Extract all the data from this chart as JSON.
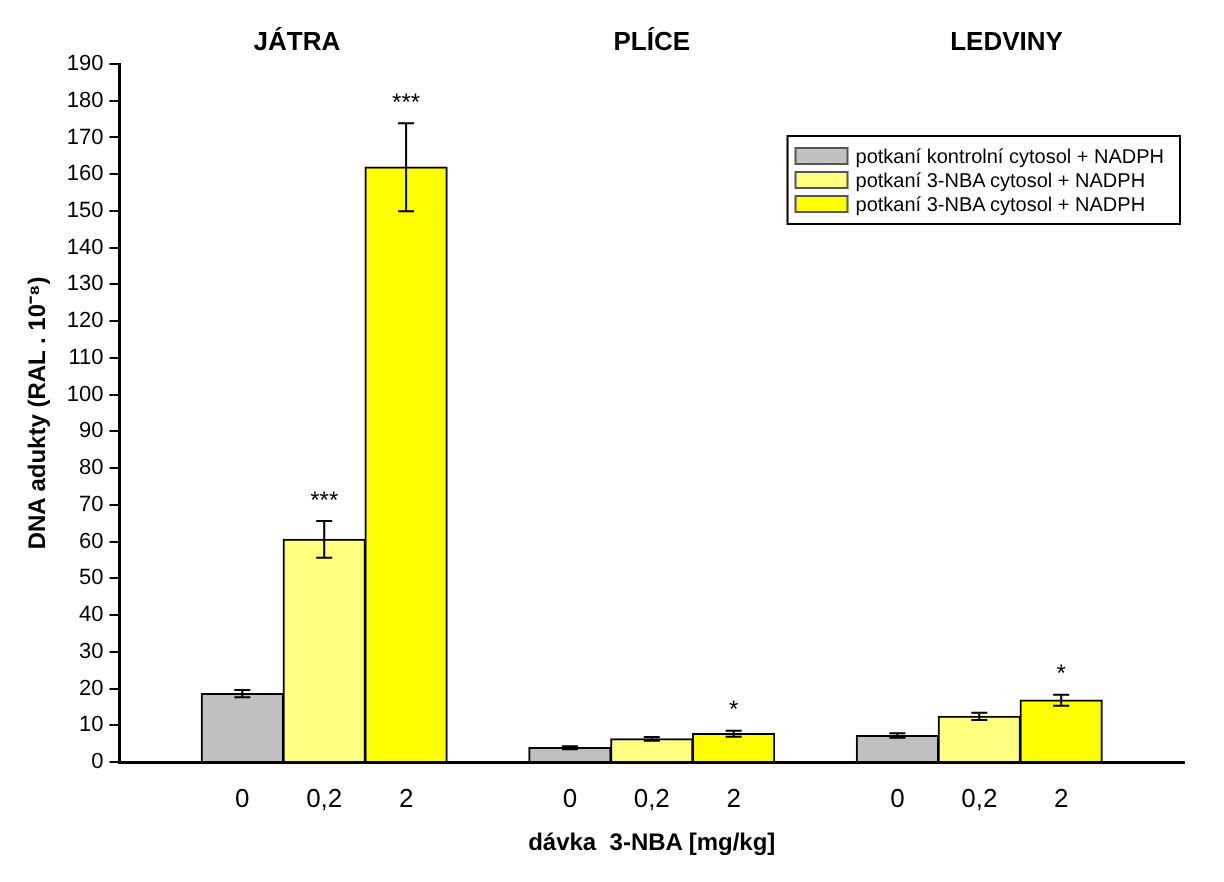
{
  "chart_data": {
    "type": "bar",
    "xlabel": "dávka  3-NBA [mg/kg]",
    "ylabel": "DNA adukty (RAL . 10⁻⁸)",
    "annotations": [
      "JÁTRA",
      "PLÍCE",
      "LEDVINY"
    ],
    "categories": [
      null,
      "0",
      "0,2",
      "2",
      null,
      "0",
      "0,2",
      "2",
      null,
      "0",
      "0,2",
      "2",
      null
    ],
    "series": [
      {
        "name": "potkaní kontrolní cytosol + NADPH",
        "color": "#c0c0c0",
        "values": [
          null,
          18.6,
          null,
          null,
          null,
          3.9,
          null,
          null,
          null,
          7.2,
          null,
          null,
          null
        ],
        "errors": [
          null,
          1,
          null,
          null,
          null,
          0.4,
          null,
          null,
          null,
          0.6,
          null,
          null,
          null
        ]
      },
      {
        "name": "potkaní 3-NBA cytosol + NADPH",
        "color": "#ffff80",
        "values": [
          null,
          null,
          60.6,
          null,
          null,
          null,
          6.3,
          null,
          null,
          null,
          12.4,
          null,
          null
        ],
        "errors": [
          null,
          null,
          5,
          null,
          null,
          null,
          0.5,
          null,
          null,
          null,
          1,
          null,
          null
        ],
        "value_labels": [
          null,
          null,
          "***",
          null,
          null,
          null,
          null,
          null,
          null,
          null,
          null,
          null,
          null
        ]
      },
      {
        "name": "potkaní 3-NBA cytosol + NADPH",
        "color": "#ffff00",
        "values": [
          null,
          null,
          null,
          161.9,
          null,
          null,
          null,
          7.7,
          null,
          null,
          null,
          16.8,
          null
        ],
        "errors": [
          null,
          null,
          null,
          12,
          null,
          null,
          null,
          0.8,
          null,
          null,
          null,
          1.5,
          null
        ],
        "value_labels": [
          null,
          null,
          null,
          "***",
          null,
          null,
          null,
          "*",
          null,
          null,
          null,
          "*",
          null
        ]
      }
    ],
    "ylim": [
      0,
      190
    ],
    "yticks": [
      0,
      10,
      20,
      30,
      40,
      50,
      60,
      70,
      80,
      90,
      100,
      110,
      120,
      130,
      140,
      150,
      160,
      170,
      180,
      190
    ],
    "legend": "top right",
    "grid": false
  }
}
